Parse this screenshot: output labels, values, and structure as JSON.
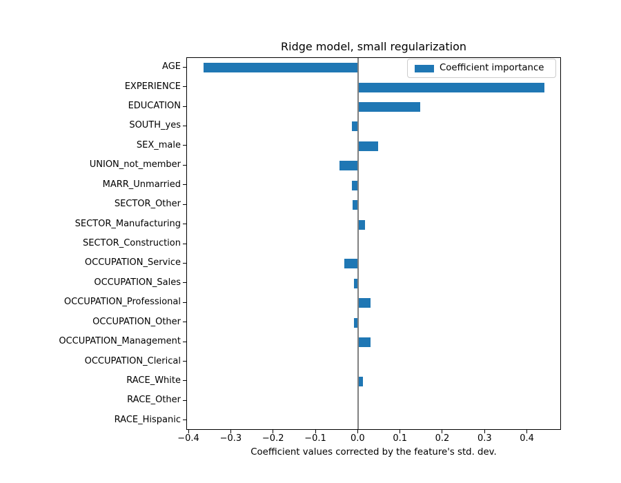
{
  "chart_data": {
    "type": "bar",
    "orientation": "horizontal",
    "title": "Ridge model, small regularization",
    "xlabel": "Coefficient values corrected by the feature's std. dev.",
    "legend": {
      "label": "Coefficient importance",
      "position": "upper right"
    },
    "categories": [
      "AGE",
      "EXPERIENCE",
      "EDUCATION",
      "SOUTH_yes",
      "SEX_male",
      "UNION_not_member",
      "MARR_Unmarried",
      "SECTOR_Other",
      "SECTOR_Manufacturing",
      "SECTOR_Construction",
      "OCCUPATION_Service",
      "OCCUPATION_Sales",
      "OCCUPATION_Professional",
      "OCCUPATION_Other",
      "OCCUPATION_Management",
      "OCCUPATION_Clerical",
      "RACE_White",
      "RACE_Other",
      "RACE_Hispanic"
    ],
    "values": [
      -0.366,
      0.439,
      0.147,
      -0.016,
      0.047,
      -0.044,
      -0.015,
      -0.014,
      0.015,
      0.0,
      -0.033,
      -0.011,
      0.029,
      -0.011,
      0.029,
      0.0,
      0.011,
      -0.003,
      0.0
    ],
    "x_ticks": [
      -0.4,
      -0.3,
      -0.2,
      -0.1,
      0.0,
      0.1,
      0.2,
      0.3,
      0.4
    ],
    "x_tick_labels": [
      "−0.4",
      "−0.3",
      "−0.2",
      "−0.1",
      "0.0",
      "0.1",
      "0.2",
      "0.3",
      "0.4"
    ],
    "xlim": [
      -0.405,
      0.4805
    ],
    "grid": false,
    "bar_color": "#1f77b4",
    "zero_line_color": "#808080"
  }
}
